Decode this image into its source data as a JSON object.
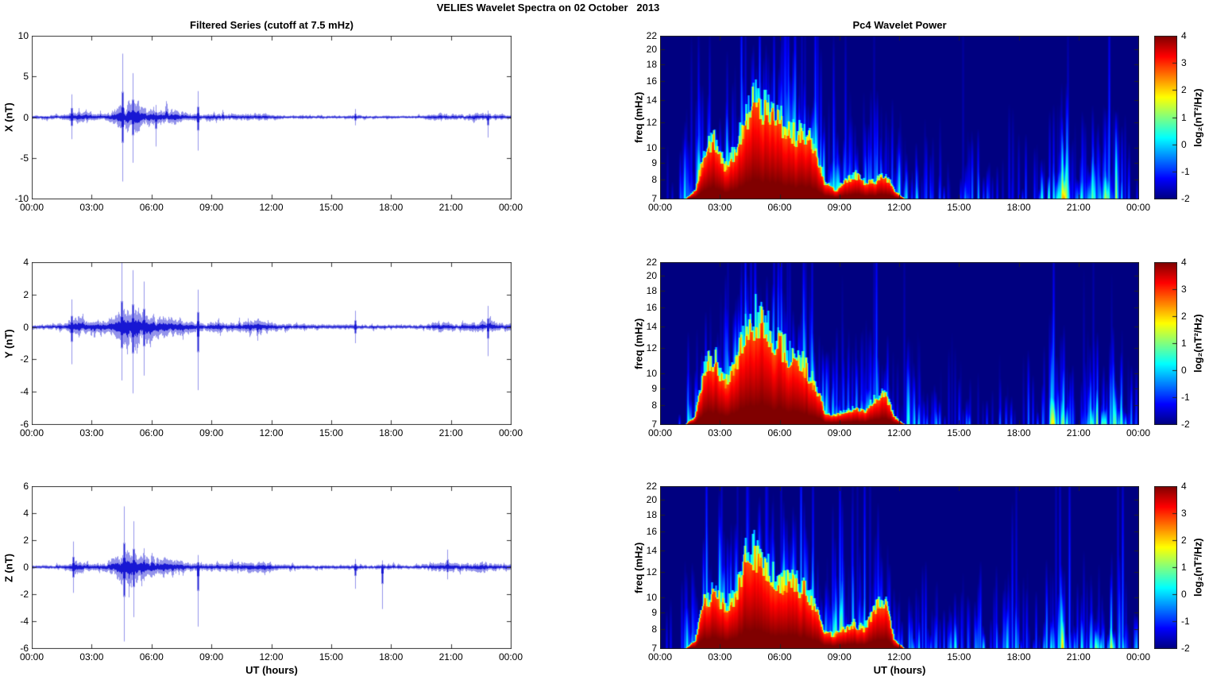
{
  "figure": {
    "title": "VELIES Wavelet Spectra on 02 October   2013",
    "x_axis_label": "UT (hours)",
    "x_tick_labels": [
      "00:00",
      "03:00",
      "06:00",
      "09:00",
      "12:00",
      "15:00",
      "18:00",
      "21:00",
      "00:00"
    ],
    "xticks_hours": [
      0,
      3,
      6,
      9,
      12,
      15,
      18,
      21,
      24
    ],
    "series_color": "#1010d2",
    "axis_color": "#333333",
    "background": "#ffffff"
  },
  "chart_data": [
    {
      "type": "line",
      "component": "X",
      "title": "Filtered Series (cutoff at 7.5 mHz)",
      "ylabel": "X (nT)",
      "xlabel": "",
      "ylim": [
        -10,
        10
      ],
      "yticks": [
        -10,
        -5,
        0,
        5,
        10
      ],
      "xlim_hours": [
        0,
        24
      ],
      "envelope_halfhour_nT": [
        0.25,
        0.25,
        0.3,
        0.4,
        0.9,
        0.6,
        0.45,
        0.55,
        1.2,
        2.4,
        2.0,
        1.2,
        1.0,
        1.1,
        1.0,
        0.55,
        0.4,
        0.4,
        0.5,
        0.4,
        0.45,
        0.5,
        0.55,
        0.5,
        0.3,
        0.28,
        0.25,
        0.25,
        0.25,
        0.2,
        0.2,
        0.25,
        0.3,
        0.2,
        0.2,
        0.22,
        0.2,
        0.2,
        0.2,
        0.3,
        0.5,
        0.5,
        0.35,
        0.4,
        0.45,
        0.5,
        0.45,
        0.3
      ],
      "spikes_hour_max_min": [
        [
          2.0,
          2.8,
          -2.7
        ],
        [
          4.55,
          7.8,
          -7.9
        ],
        [
          5.05,
          5.4,
          -5.6
        ],
        [
          6.2,
          1.5,
          -3.6
        ],
        [
          8.3,
          3.2,
          -4.1
        ],
        [
          16.2,
          1.0,
          -1.0
        ],
        [
          22.85,
          0.8,
          -2.5
        ]
      ]
    },
    {
      "type": "line",
      "component": "Y",
      "title": "",
      "ylabel": "Y (nT)",
      "xlabel": "",
      "ylim": [
        -6,
        4
      ],
      "yticks": [
        -6,
        -4,
        -2,
        0,
        2,
        4
      ],
      "xlim_hours": [
        0,
        24
      ],
      "envelope_halfhour_nT": [
        0.18,
        0.18,
        0.22,
        0.3,
        0.7,
        0.45,
        0.4,
        0.45,
        0.9,
        1.5,
        1.3,
        1.0,
        0.8,
        0.8,
        0.75,
        0.45,
        0.35,
        0.3,
        0.4,
        0.3,
        0.35,
        0.4,
        0.45,
        0.4,
        0.28,
        0.25,
        0.22,
        0.2,
        0.2,
        0.18,
        0.15,
        0.18,
        0.2,
        0.15,
        0.15,
        0.16,
        0.15,
        0.15,
        0.15,
        0.2,
        0.35,
        0.3,
        0.25,
        0.3,
        0.35,
        0.4,
        0.35,
        0.25
      ],
      "spikes_hour_max_min": [
        [
          2.0,
          1.7,
          -2.3
        ],
        [
          4.5,
          4.0,
          -3.3
        ],
        [
          5.05,
          3.5,
          -4.1
        ],
        [
          5.6,
          2.8,
          -3.0
        ],
        [
          8.3,
          2.3,
          -3.9
        ],
        [
          16.2,
          1.0,
          -1.0
        ],
        [
          22.85,
          1.3,
          -1.8
        ]
      ]
    },
    {
      "type": "line",
      "component": "Z",
      "title": "",
      "ylabel": "Z (nT)",
      "xlabel": "UT (hours)",
      "ylim": [
        -6,
        6
      ],
      "yticks": [
        -6,
        -4,
        -2,
        0,
        2,
        4,
        6
      ],
      "xlim_hours": [
        0,
        24
      ],
      "envelope_halfhour_nT": [
        0.15,
        0.15,
        0.2,
        0.25,
        0.6,
        0.4,
        0.35,
        0.4,
        1.0,
        1.6,
        1.2,
        0.9,
        0.8,
        0.8,
        0.75,
        0.4,
        0.3,
        0.3,
        0.4,
        0.35,
        0.35,
        0.4,
        0.45,
        0.4,
        0.25,
        0.22,
        0.2,
        0.2,
        0.2,
        0.18,
        0.18,
        0.2,
        0.25,
        0.18,
        0.18,
        0.2,
        0.18,
        0.18,
        0.18,
        0.25,
        0.4,
        0.45,
        0.35,
        0.35,
        0.4,
        0.4,
        0.35,
        0.25
      ],
      "spikes_hour_max_min": [
        [
          2.05,
          1.9,
          -1.9
        ],
        [
          4.6,
          4.5,
          -5.5
        ],
        [
          5.1,
          3.4,
          -3.7
        ],
        [
          8.3,
          0.9,
          -4.4
        ],
        [
          16.2,
          0.6,
          -1.6
        ],
        [
          17.55,
          0.5,
          -3.1
        ],
        [
          20.8,
          1.3,
          -0.9
        ]
      ]
    },
    {
      "type": "heatmap",
      "component": "X",
      "title": "Pc4 Wavelet Power",
      "ylabel": "freq (mHz)",
      "xlabel": "",
      "yscale": "log",
      "ylim_mHz": [
        7,
        22
      ],
      "yticks_mHz": [
        22,
        20,
        18,
        16,
        14,
        12,
        10,
        9,
        8,
        7
      ],
      "clim_log2_power": [
        -2,
        4
      ],
      "colormap": "jet",
      "colorbar_ticks": [
        4,
        3,
        2,
        1,
        0,
        -1,
        -2
      ],
      "colorbar_label": "log₂(nT²/Hz)",
      "streak_density_halfhour": [
        0.05,
        0.1,
        0.35,
        0.6,
        0.9,
        0.9,
        0.9,
        0.95,
        1,
        1,
        1,
        1,
        1,
        1,
        0.95,
        0.8,
        0.7,
        0.7,
        0.7,
        0.6,
        0.6,
        0.7,
        0.7,
        0.5,
        0.4,
        0.3,
        0.3,
        0.25,
        0.25,
        0.2,
        0.3,
        0.3,
        0.3,
        0.2,
        0.2,
        0.25,
        0.2,
        0.15,
        0.2,
        0.7,
        0.7,
        0.4,
        0.3,
        0.5,
        0.6,
        0.6,
        0.4,
        0.2
      ],
      "peak_power_halfhour": [
        0.1,
        0.2,
        0.4,
        0.55,
        0.8,
        0.8,
        0.7,
        0.9,
        1,
        1,
        1,
        0.95,
        0.9,
        0.9,
        0.85,
        0.6,
        0.6,
        0.5,
        0.6,
        0.5,
        0.5,
        0.6,
        0.5,
        0.4,
        0.3,
        0.3,
        0.25,
        0.3,
        0.25,
        0.2,
        0.3,
        0.35,
        0.3,
        0.2,
        0.25,
        0.3,
        0.2,
        0.2,
        0.3,
        0.8,
        0.7,
        0.4,
        0.3,
        0.5,
        0.6,
        0.6,
        0.4,
        0.2
      ],
      "saturated_fraction_halfhour": [
        0,
        0,
        0,
        0.05,
        0.3,
        0.35,
        0.2,
        0.3,
        0.5,
        0.6,
        0.55,
        0.5,
        0.45,
        0.4,
        0.4,
        0.3,
        0.1,
        0.05,
        0.1,
        0.15,
        0.1,
        0.1,
        0.15,
        0.05,
        0,
        0,
        0,
        0,
        0,
        0,
        0,
        0,
        0,
        0,
        0,
        0,
        0,
        0,
        0,
        0,
        0,
        0,
        0,
        0,
        0,
        0,
        0,
        0
      ]
    },
    {
      "type": "heatmap",
      "component": "Y",
      "title": "",
      "ylabel": "freq (mHz)",
      "xlabel": "",
      "yscale": "log",
      "ylim_mHz": [
        7,
        22
      ],
      "yticks_mHz": [
        22,
        20,
        18,
        16,
        14,
        12,
        10,
        9,
        8,
        7
      ],
      "clim_log2_power": [
        -2,
        4
      ],
      "colormap": "jet",
      "colorbar_ticks": [
        4,
        3,
        2,
        1,
        0,
        -1,
        -2
      ],
      "colorbar_label": "log₂(nT²/Hz)",
      "streak_density_halfhour": [
        0.05,
        0.1,
        0.3,
        0.55,
        0.85,
        0.9,
        0.9,
        0.95,
        1,
        1,
        1,
        1,
        1,
        1,
        0.95,
        0.8,
        0.7,
        0.65,
        0.7,
        0.6,
        0.6,
        0.75,
        0.75,
        0.5,
        0.45,
        0.35,
        0.3,
        0.25,
        0.2,
        0.2,
        0.25,
        0.3,
        0.25,
        0.2,
        0.2,
        0.2,
        0.15,
        0.15,
        0.2,
        0.65,
        0.6,
        0.35,
        0.3,
        0.5,
        0.6,
        0.6,
        0.45,
        0.25
      ],
      "peak_power_halfhour": [
        0.1,
        0.2,
        0.35,
        0.5,
        0.8,
        0.8,
        0.7,
        0.9,
        1,
        1,
        1,
        0.95,
        0.9,
        0.9,
        0.8,
        0.6,
        0.55,
        0.5,
        0.55,
        0.45,
        0.5,
        0.7,
        0.7,
        0.4,
        0.35,
        0.3,
        0.25,
        0.25,
        0.2,
        0.2,
        0.25,
        0.3,
        0.25,
        0.2,
        0.2,
        0.2,
        0.15,
        0.2,
        0.3,
        0.7,
        0.6,
        0.35,
        0.3,
        0.5,
        0.55,
        0.55,
        0.4,
        0.2
      ],
      "saturated_fraction_halfhour": [
        0,
        0,
        0,
        0.05,
        0.35,
        0.4,
        0.25,
        0.35,
        0.55,
        0.65,
        0.6,
        0.5,
        0.45,
        0.4,
        0.35,
        0.25,
        0.08,
        0.05,
        0.08,
        0.1,
        0.08,
        0.15,
        0.2,
        0.05,
        0,
        0,
        0,
        0,
        0,
        0,
        0,
        0,
        0,
        0,
        0,
        0,
        0,
        0,
        0,
        0,
        0,
        0,
        0,
        0,
        0,
        0,
        0,
        0
      ]
    },
    {
      "type": "heatmap",
      "component": "Z",
      "title": "",
      "ylabel": "freq (mHz)",
      "xlabel": "UT (hours)",
      "yscale": "log",
      "ylim_mHz": [
        7,
        22
      ],
      "yticks_mHz": [
        22,
        20,
        18,
        16,
        14,
        12,
        10,
        9,
        8,
        7
      ],
      "clim_log2_power": [
        -2,
        4
      ],
      "colormap": "jet",
      "colorbar_ticks": [
        4,
        3,
        2,
        1,
        0,
        -1,
        -2
      ],
      "colorbar_label": "log₂(nT²/Hz)",
      "streak_density_halfhour": [
        0.05,
        0.1,
        0.3,
        0.5,
        0.8,
        0.85,
        0.9,
        0.95,
        1,
        1,
        1,
        1,
        1,
        1,
        0.95,
        0.85,
        0.75,
        0.7,
        0.75,
        0.65,
        0.65,
        0.75,
        0.7,
        0.5,
        0.45,
        0.4,
        0.35,
        0.3,
        0.3,
        0.25,
        0.3,
        0.3,
        0.3,
        0.25,
        0.3,
        0.35,
        0.25,
        0.2,
        0.25,
        0.6,
        0.65,
        0.45,
        0.4,
        0.5,
        0.55,
        0.5,
        0.45,
        0.3
      ],
      "peak_power_halfhour": [
        0.1,
        0.15,
        0.3,
        0.5,
        0.75,
        0.8,
        0.7,
        0.85,
        1,
        1,
        1,
        0.95,
        0.9,
        0.9,
        0.85,
        0.65,
        0.6,
        0.55,
        0.6,
        0.5,
        0.55,
        0.7,
        0.65,
        0.4,
        0.35,
        0.3,
        0.3,
        0.3,
        0.3,
        0.25,
        0.35,
        0.3,
        0.3,
        0.3,
        0.4,
        0.3,
        0.25,
        0.2,
        0.3,
        0.6,
        0.65,
        0.45,
        0.4,
        0.45,
        0.5,
        0.45,
        0.4,
        0.25
      ],
      "saturated_fraction_halfhour": [
        0,
        0,
        0,
        0.05,
        0.3,
        0.35,
        0.25,
        0.3,
        0.55,
        0.6,
        0.5,
        0.45,
        0.4,
        0.4,
        0.35,
        0.25,
        0.1,
        0.08,
        0.12,
        0.15,
        0.12,
        0.25,
        0.3,
        0.05,
        0,
        0,
        0,
        0,
        0,
        0,
        0,
        0,
        0,
        0,
        0,
        0,
        0,
        0,
        0,
        0,
        0,
        0,
        0,
        0,
        0,
        0,
        0,
        0
      ]
    }
  ]
}
